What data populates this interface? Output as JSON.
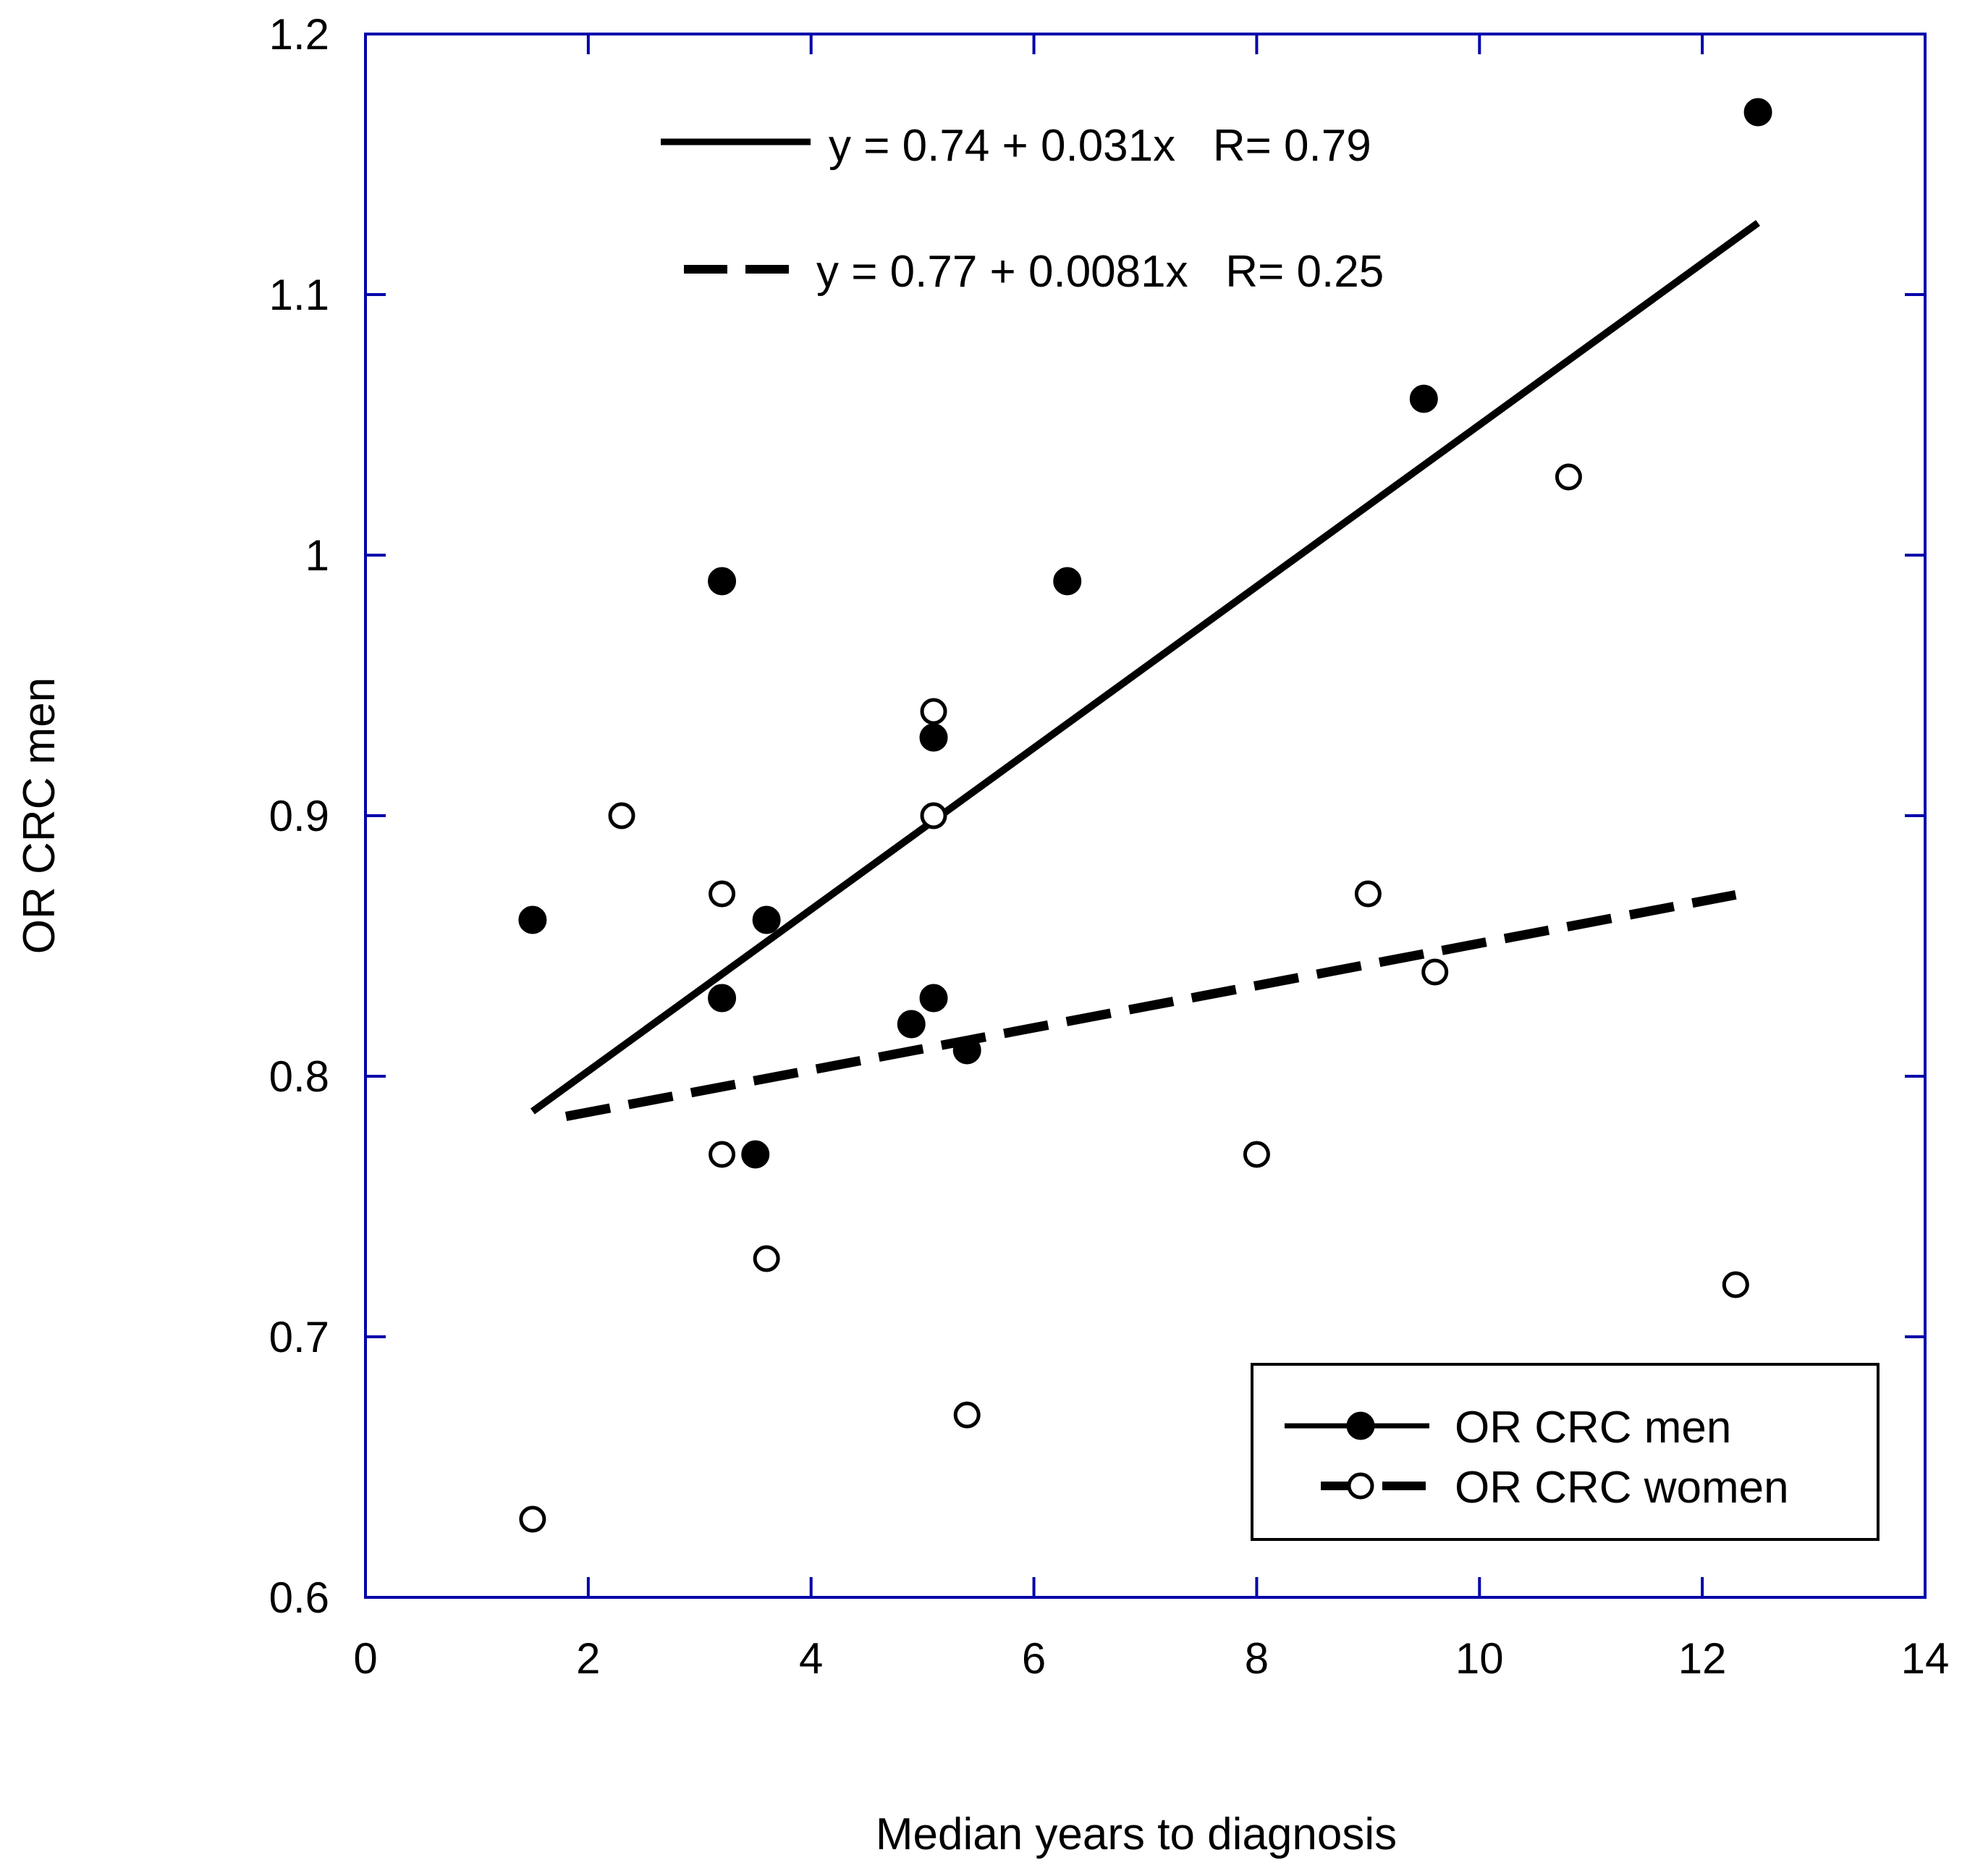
{
  "chart_data": {
    "type": "scatter",
    "xlabel": "Median years to diagnosis",
    "ylabel": "OR CRC men",
    "xlim": [
      0,
      14
    ],
    "ylim": [
      0.6,
      1.2
    ],
    "xticks": [
      0,
      2,
      4,
      6,
      8,
      10,
      12,
      14
    ],
    "yticks": [
      0.6,
      0.7,
      0.8,
      0.9,
      1.0,
      1.1,
      1.2
    ],
    "xtick_labels": [
      "0",
      "2",
      "4",
      "6",
      "8",
      "10",
      "12",
      "14"
    ],
    "ytick_labels": [
      "0.6",
      "0.7",
      "0.8",
      "0.9",
      "1",
      "1.1",
      "1.2"
    ],
    "grid": false,
    "legend_position": "bottom-right",
    "series": [
      {
        "name": "OR CRC men",
        "marker": "filled-circle",
        "line_style": "solid",
        "points": [
          {
            "x": 1.5,
            "y": 0.86
          },
          {
            "x": 3.2,
            "y": 0.99
          },
          {
            "x": 3.2,
            "y": 0.83
          },
          {
            "x": 3.5,
            "y": 0.77
          },
          {
            "x": 3.6,
            "y": 0.86
          },
          {
            "x": 4.9,
            "y": 0.82
          },
          {
            "x": 5.1,
            "y": 0.93
          },
          {
            "x": 5.1,
            "y": 0.83
          },
          {
            "x": 5.4,
            "y": 0.81
          },
          {
            "x": 6.3,
            "y": 0.99
          },
          {
            "x": 9.5,
            "y": 1.06
          },
          {
            "x": 12.5,
            "y": 1.17
          }
        ],
        "fit": {
          "intercept": 0.74,
          "slope": 0.031,
          "x_range": [
            1.5,
            12.5
          ],
          "label": "y = 0.74 + 0.031x   R= 0.79"
        }
      },
      {
        "name": "OR CRC women",
        "marker": "open-circle",
        "line_style": "dashed",
        "points": [
          {
            "x": 1.5,
            "y": 0.63
          },
          {
            "x": 2.3,
            "y": 0.9
          },
          {
            "x": 3.2,
            "y": 0.87
          },
          {
            "x": 3.2,
            "y": 0.77
          },
          {
            "x": 3.6,
            "y": 0.73
          },
          {
            "x": 5.1,
            "y": 0.94
          },
          {
            "x": 5.1,
            "y": 0.9
          },
          {
            "x": 5.4,
            "y": 0.67
          },
          {
            "x": 8.0,
            "y": 0.77
          },
          {
            "x": 9.0,
            "y": 0.87
          },
          {
            "x": 9.6,
            "y": 0.84
          },
          {
            "x": 10.8,
            "y": 1.03
          },
          {
            "x": 12.3,
            "y": 0.72
          }
        ],
        "fit": {
          "intercept": 0.77,
          "slope": 0.0081,
          "x_range": [
            1.8,
            12.3
          ],
          "label": "y = 0.77 + 0.0081x   R= 0.25"
        }
      }
    ],
    "colors": {
      "frame": "#0000aa",
      "marks": "#000000"
    }
  }
}
